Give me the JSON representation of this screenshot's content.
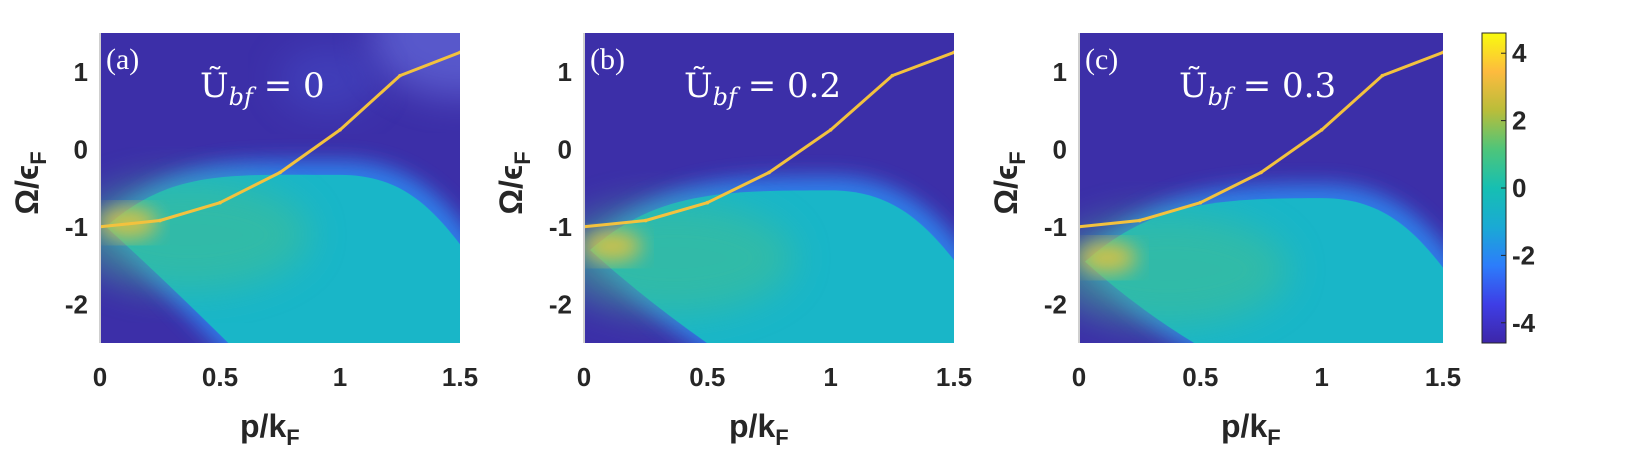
{
  "chart_data": [
    {
      "type": "heatmap",
      "panel_label": "(a)",
      "annotation": {
        "symbol": "Ũ",
        "subscript": "bf",
        "relation": " = 0"
      },
      "xlabel": "p/k",
      "xlabel_sub": "F",
      "ylabel": "Ω/ϵ",
      "ylabel_sub": "F",
      "xlim": [
        0,
        1.5
      ],
      "ylim": [
        -2.5,
        1.5
      ],
      "xticks": [
        "0",
        "0.5",
        "1",
        "1.5"
      ],
      "yticks": [
        "1",
        "0",
        "-1",
        "-2"
      ],
      "continuum": {
        "apex_x": 0,
        "apex_y": -1.0,
        "peak_y": -0.15,
        "peak_x": 1.0
      },
      "dispersion": {
        "x": [
          0,
          0.25,
          0.5,
          0.75,
          1.0,
          1.25,
          1.5
        ],
        "y": [
          -1.0,
          -0.92,
          -0.69,
          -0.3,
          0.25,
          0.95,
          1.25
        ]
      }
    },
    {
      "type": "heatmap",
      "panel_label": "(b)",
      "annotation": {
        "symbol": "Ũ",
        "subscript": "bf",
        "relation": " = 0.2"
      },
      "xlabel": "p/k",
      "xlabel_sub": "F",
      "ylabel": "Ω/ϵ",
      "ylabel_sub": "F",
      "xlim": [
        0,
        1.5
      ],
      "ylim": [
        -2.5,
        1.5
      ],
      "xticks": [
        "0",
        "0.5",
        "1",
        "1.5"
      ],
      "yticks": [
        "1",
        "0",
        "-1",
        "-2"
      ],
      "continuum": {
        "apex_x": 0,
        "apex_y": -1.3,
        "peak_y": -0.35,
        "peak_x": 1.0
      },
      "dispersion": {
        "x": [
          0,
          0.25,
          0.5,
          0.75,
          1.0,
          1.25,
          1.5
        ],
        "y": [
          -1.0,
          -0.92,
          -0.69,
          -0.3,
          0.25,
          0.95,
          1.25
        ]
      }
    },
    {
      "type": "heatmap",
      "panel_label": "(c)",
      "annotation": {
        "symbol": "Ũ",
        "subscript": "bf",
        "relation": " = 0.3"
      },
      "xlabel": "p/k",
      "xlabel_sub": "F",
      "ylabel": "Ω/ϵ",
      "ylabel_sub": "F",
      "xlim": [
        0,
        1.5
      ],
      "ylim": [
        -2.5,
        1.5
      ],
      "xticks": [
        "0",
        "0.5",
        "1",
        "1.5"
      ],
      "yticks": [
        "1",
        "0",
        "-1",
        "-2"
      ],
      "continuum": {
        "apex_x": 0,
        "apex_y": -1.45,
        "peak_y": -0.45,
        "peak_x": 1.0
      },
      "dispersion": {
        "x": [
          0,
          0.25,
          0.5,
          0.75,
          1.0,
          1.25,
          1.5
        ],
        "y": [
          -1.0,
          -0.92,
          -0.69,
          -0.3,
          0.25,
          0.95,
          1.25
        ]
      }
    }
  ],
  "colorbar": {
    "ticks": [
      "4",
      "2",
      "0",
      "-2",
      "-4"
    ],
    "range": [
      -4.6,
      4.6
    ],
    "colors": [
      "#3d26a8",
      "#3e3ee6",
      "#2c7dfb",
      "#1aaad4",
      "#16bfb2",
      "#4ec57a",
      "#b9bd3a",
      "#fdbb3e",
      "#f9fb0e"
    ]
  },
  "colors": {
    "background_low": "#3c2fa8",
    "continuum": "#19b6c8",
    "continuum_edge": "#2d86f0",
    "hotspot": "#e9c23a",
    "dispersion": "#f3c23e"
  }
}
